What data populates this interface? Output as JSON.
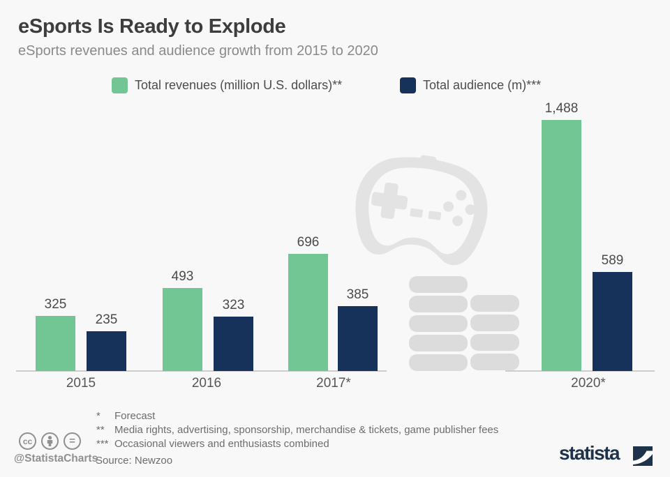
{
  "title": "eSports Is Ready to Explode",
  "subtitle": "eSports revenues and audience growth from 2015 to 2020",
  "legend": [
    {
      "label": "Total revenues (million U.S. dollars)**",
      "color": "#72c694"
    },
    {
      "label": "Total audience (m)***",
      "color": "#17325a"
    }
  ],
  "chart_data": {
    "type": "bar",
    "title": "eSports Is Ready to Explode",
    "categories": [
      "2015",
      "2016",
      "2017*",
      "2020*"
    ],
    "series": [
      {
        "name": "Total revenues (million U.S. dollars)**",
        "color": "#72c694",
        "values": [
          325,
          493,
          696,
          1488
        ],
        "labels": [
          "325",
          "493",
          "696",
          "1,488"
        ]
      },
      {
        "name": "Total audience (m)***",
        "color": "#17325a",
        "values": [
          235,
          323,
          385,
          589
        ],
        "labels": [
          "235",
          "323",
          "385",
          "589"
        ]
      }
    ],
    "xlabel": "",
    "ylabel": "",
    "ylim": [
      0,
      1600
    ],
    "grid": false,
    "legend_position": "top",
    "axis_break": "between 2017* and 2020*"
  },
  "footnotes": [
    {
      "marker": "*",
      "text": "Forecast"
    },
    {
      "marker": "**",
      "text": "Media rights, advertising, sponsorship, merchandise & tickets, game publisher fees"
    },
    {
      "marker": "***",
      "text": "Occasional viewers and enthusiasts combined"
    }
  ],
  "source": "Source: Newzoo",
  "credits": {
    "handle": "@StatistaCharts",
    "brand": "statista",
    "cc_label": "cc",
    "equals_label": "="
  },
  "colors": {
    "revenue_green": "#72c694",
    "audience_navy": "#17325a",
    "background": "#f8f8f8",
    "axis_line": "#cdcdcd",
    "watermark_gray": "#e3e3e3",
    "coins_gray": "#dcdcdc",
    "brand_navy": "#1e3349",
    "title_text": "#3d3d3d",
    "subtitle_text": "#8a8a8a"
  }
}
